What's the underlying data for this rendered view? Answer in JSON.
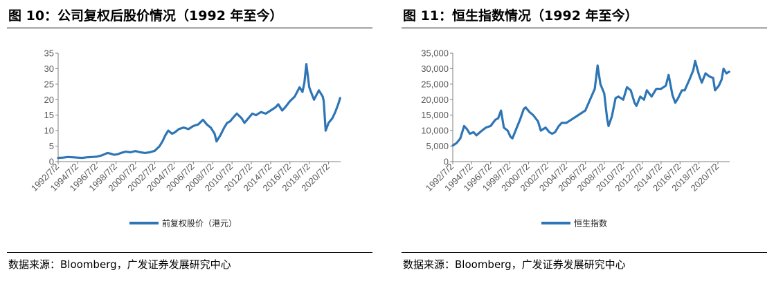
{
  "left": {
    "title": "图 10：公司复权后股价情况（1992 年至今）",
    "source": "数据来源：Bloomberg，广发证券发展研究中心"
  },
  "right": {
    "title": "图 11：恒生指数情况（1992 年至今）",
    "source": "数据来源：Bloomberg，广发证券发展研究中心"
  },
  "colors": {
    "series": "#2E75B6",
    "axis": "#7f7f7f",
    "text": "#595959"
  },
  "chart_data": [
    {
      "type": "line",
      "title": "",
      "xlabel": "",
      "ylabel": "",
      "ylim": [
        0,
        35
      ],
      "yticks": [
        0,
        5,
        10,
        15,
        20,
        25,
        30,
        35
      ],
      "xlim": [
        1992.5,
        2021.75
      ],
      "xticks": [
        "1992/7/2",
        "1994/7/2",
        "1996/7/2",
        "1998/7/2",
        "2000/7/2",
        "2002/7/2",
        "2004/7/2",
        "2006/7/2",
        "2008/7/2",
        "2010/7/2",
        "2012/7/2",
        "2014/7/2",
        "2016/7/2",
        "2018/7/2",
        "2020/7/2"
      ],
      "grid": false,
      "legend_position": "bottom",
      "series": [
        {
          "name": "前复权股价（港元）",
          "x": [
            1992.5,
            1993.0,
            1993.5,
            1994.0,
            1994.5,
            1995.0,
            1995.5,
            1996.0,
            1996.5,
            1997.0,
            1997.4,
            1997.6,
            1997.9,
            1998.3,
            1998.7,
            1999.0,
            1999.5,
            2000.0,
            2000.5,
            2001.0,
            2001.5,
            2002.0,
            2002.5,
            2003.0,
            2003.3,
            2003.6,
            2003.9,
            2004.3,
            2004.6,
            2005.0,
            2005.5,
            2006.0,
            2006.5,
            2007.0,
            2007.5,
            2007.9,
            2008.3,
            2008.7,
            2008.9,
            2009.3,
            2009.7,
            2010.0,
            2010.3,
            2010.7,
            2011.0,
            2011.5,
            2011.8,
            2012.2,
            2012.6,
            2013.0,
            2013.5,
            2014.0,
            2014.5,
            2015.0,
            2015.3,
            2015.7,
            2016.0,
            2016.5,
            2017.0,
            2017.5,
            2017.8,
            2018.0,
            2018.2,
            2018.5,
            2018.8,
            2019.0,
            2019.5,
            2019.9,
            2020.0,
            2020.2,
            2020.5,
            2020.9,
            2021.2,
            2021.5,
            2021.7
          ],
          "values": [
            1.2,
            1.3,
            1.5,
            1.4,
            1.3,
            1.2,
            1.4,
            1.5,
            1.6,
            2.0,
            2.5,
            2.8,
            2.6,
            2.2,
            2.4,
            2.8,
            3.2,
            3.0,
            3.4,
            3.0,
            2.8,
            3.0,
            3.5,
            5.0,
            6.5,
            8.5,
            10.0,
            9.0,
            9.5,
            10.5,
            11.0,
            10.5,
            11.5,
            12.0,
            13.5,
            12.0,
            11.0,
            9.0,
            6.5,
            8.5,
            11.0,
            12.5,
            13.0,
            14.5,
            15.5,
            14.0,
            12.5,
            14.0,
            15.5,
            15.0,
            16.0,
            15.5,
            16.5,
            17.5,
            18.5,
            16.5,
            17.5,
            19.5,
            21.0,
            24.0,
            22.5,
            25.5,
            31.5,
            24.0,
            21.5,
            20.0,
            23.0,
            21.0,
            19.5,
            10.0,
            12.5,
            14.0,
            16.0,
            18.5,
            20.5
          ]
        }
      ]
    },
    {
      "type": "line",
      "title": "",
      "xlabel": "",
      "ylabel": "",
      "ylim": [
        0,
        35000
      ],
      "yticks": [
        0,
        5000,
        10000,
        15000,
        20000,
        25000,
        30000,
        35000
      ],
      "ytick_labels": [
        "0",
        "5,000",
        "10,000",
        "15,000",
        "20,000",
        "25,000",
        "30,000",
        "35,000"
      ],
      "xlim": [
        1992.5,
        2021.75
      ],
      "xticks": [
        "1992/7/2",
        "1994/7/2",
        "1996/7/2",
        "1998/7/2",
        "2000/7/2",
        "2002/7/2",
        "2004/7/2",
        "2006/7/2",
        "2008/7/2",
        "2010/7/2",
        "2012/7/2",
        "2014/7/2",
        "2016/7/2",
        "2018/7/2",
        "2020/7/2"
      ],
      "grid": false,
      "legend_position": "bottom",
      "series": [
        {
          "name": "恒生指数",
          "x": [
            1992.5,
            1992.9,
            1993.3,
            1993.7,
            1994.0,
            1994.3,
            1994.7,
            1995.0,
            1995.5,
            1996.0,
            1996.5,
            1997.0,
            1997.3,
            1997.6,
            1997.9,
            1998.3,
            1998.6,
            1998.8,
            1999.2,
            1999.6,
            2000.0,
            2000.2,
            2000.6,
            2001.0,
            2001.5,
            2001.8,
            2002.3,
            2002.7,
            2003.0,
            2003.3,
            2003.7,
            2004.0,
            2004.5,
            2005.0,
            2005.5,
            2006.0,
            2006.5,
            2007.0,
            2007.5,
            2007.8,
            2008.1,
            2008.5,
            2008.8,
            2008.95,
            2009.3,
            2009.7,
            2010.0,
            2010.5,
            2010.9,
            2011.3,
            2011.7,
            2011.9,
            2012.3,
            2012.7,
            2013.0,
            2013.5,
            2014.0,
            2014.5,
            2015.0,
            2015.3,
            2015.7,
            2016.0,
            2016.3,
            2016.7,
            2017.0,
            2017.5,
            2017.9,
            2018.1,
            2018.5,
            2018.8,
            2019.2,
            2019.6,
            2020.0,
            2020.2,
            2020.6,
            2020.9,
            2021.1,
            2021.4,
            2021.7
          ],
          "values": [
            5200,
            6000,
            7500,
            11500,
            10500,
            9000,
            9500,
            8500,
            9800,
            11000,
            11500,
            13500,
            14000,
            16500,
            11000,
            10000,
            8000,
            7500,
            10500,
            13500,
            17000,
            17500,
            16000,
            15000,
            13000,
            10000,
            11000,
            9500,
            9000,
            9500,
            11500,
            12500,
            12500,
            13500,
            14500,
            15500,
            16500,
            20000,
            23500,
            31000,
            25000,
            22000,
            14000,
            11500,
            14500,
            20500,
            21000,
            20000,
            24000,
            23000,
            19000,
            18000,
            21000,
            20000,
            23000,
            21000,
            23500,
            23500,
            24500,
            28000,
            21500,
            19000,
            20500,
            23000,
            23000,
            26500,
            29500,
            32500,
            28000,
            25500,
            28500,
            27500,
            27000,
            23000,
            24500,
            26500,
            30000,
            28500,
            29000
          ]
        }
      ]
    }
  ]
}
